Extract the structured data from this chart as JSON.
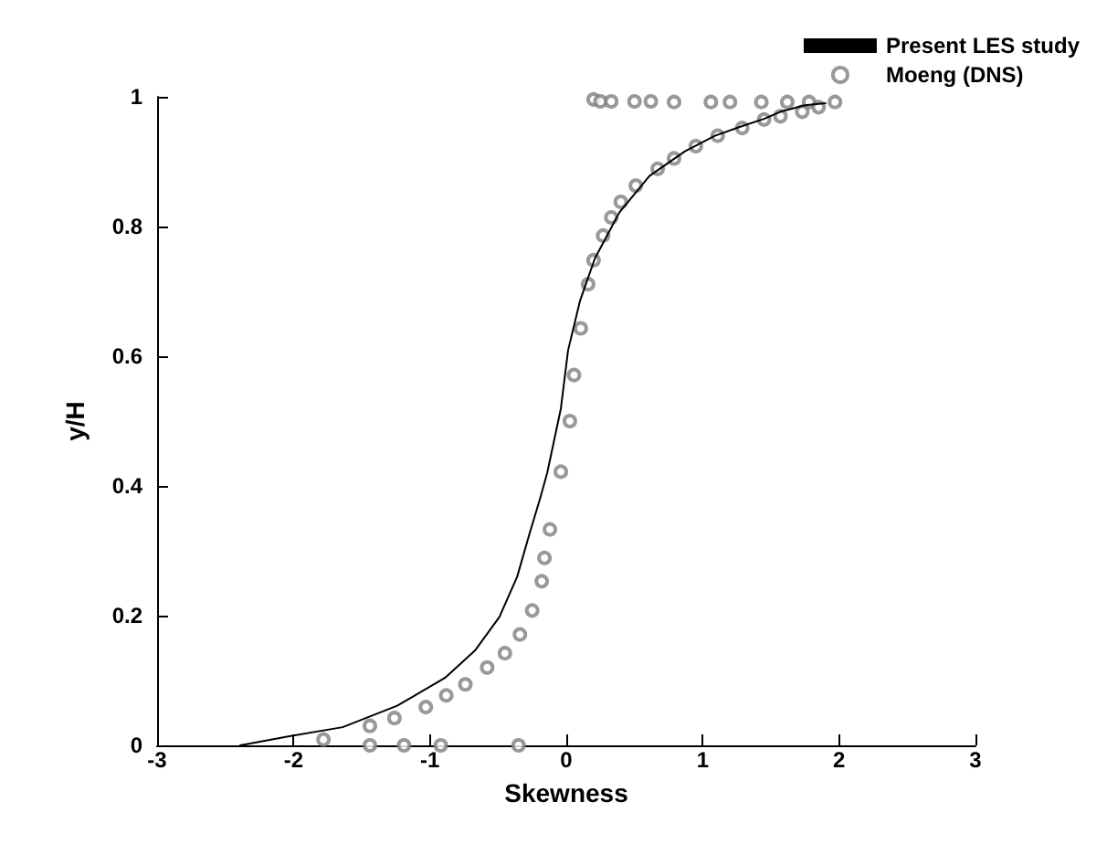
{
  "chart_data": {
    "type": "line",
    "xlabel": "Skewness",
    "ylabel": "y/H",
    "xlim": [
      -3,
      3
    ],
    "ylim": [
      0,
      1
    ],
    "xticks": [
      -3,
      -2,
      -1,
      0,
      1,
      2,
      3
    ],
    "yticks": [
      0,
      0.2,
      0.4,
      0.6,
      0.8,
      1
    ],
    "grid": false,
    "legend": "top right",
    "series": [
      {
        "name": "Present LES study",
        "color": "#000000",
        "marker": "none",
        "line_style": "solid",
        "x": [
          -2.39,
          -2.03,
          -1.64,
          -1.24,
          -0.89,
          -0.67,
          -0.49,
          -0.36,
          -0.27,
          -0.19,
          -0.14,
          -0.04,
          0.013,
          0.1,
          0.21,
          0.39,
          0.61,
          0.87,
          1.09,
          1.29,
          1.45,
          1.57,
          1.75,
          1.9
        ],
        "values": [
          0,
          0.014,
          0.028,
          0.061,
          0.104,
          0.146,
          0.198,
          0.26,
          0.326,
          0.382,
          0.42,
          0.519,
          0.609,
          0.685,
          0.751,
          0.822,
          0.878,
          0.916,
          0.94,
          0.955,
          0.966,
          0.977,
          0.987,
          0.99
        ]
      },
      {
        "name": "Moeng (DNS)",
        "type": "scatter",
        "color": "#808080",
        "marker": "circle",
        "x": [
          0.2,
          0.25,
          0.33,
          0.5,
          0.62,
          0.79,
          1.06,
          1.2,
          1.43,
          1.62,
          1.78,
          1.97,
          1.85,
          1.73,
          1.57,
          1.45,
          1.29,
          1.11,
          0.95,
          0.79,
          0.67,
          0.51,
          0.4,
          0.33,
          0.27,
          0.2,
          0.16,
          0.106,
          0.057,
          0.026,
          -0.04,
          -0.12,
          -0.16,
          -0.18,
          -0.25,
          -0.34,
          -0.45,
          -0.58,
          -0.74,
          -0.88,
          -1.03,
          -1.26,
          -1.44,
          -1.78,
          -1.44,
          -1.19,
          -0.92,
          -0.35
        ],
        "values": [
          0.996,
          0.993,
          0.993,
          0.993,
          0.993,
          0.992,
          0.992,
          0.992,
          0.992,
          0.992,
          0.992,
          0.992,
          0.984,
          0.977,
          0.97,
          0.965,
          0.952,
          0.94,
          0.924,
          0.905,
          0.889,
          0.863,
          0.838,
          0.814,
          0.786,
          0.748,
          0.711,
          0.643,
          0.571,
          0.5,
          0.422,
          0.333,
          0.289,
          0.253,
          0.208,
          0.171,
          0.142,
          0.12,
          0.094,
          0.077,
          0.059,
          0.042,
          0.03,
          0.009,
          0,
          0,
          0,
          0
        ]
      }
    ]
  }
}
